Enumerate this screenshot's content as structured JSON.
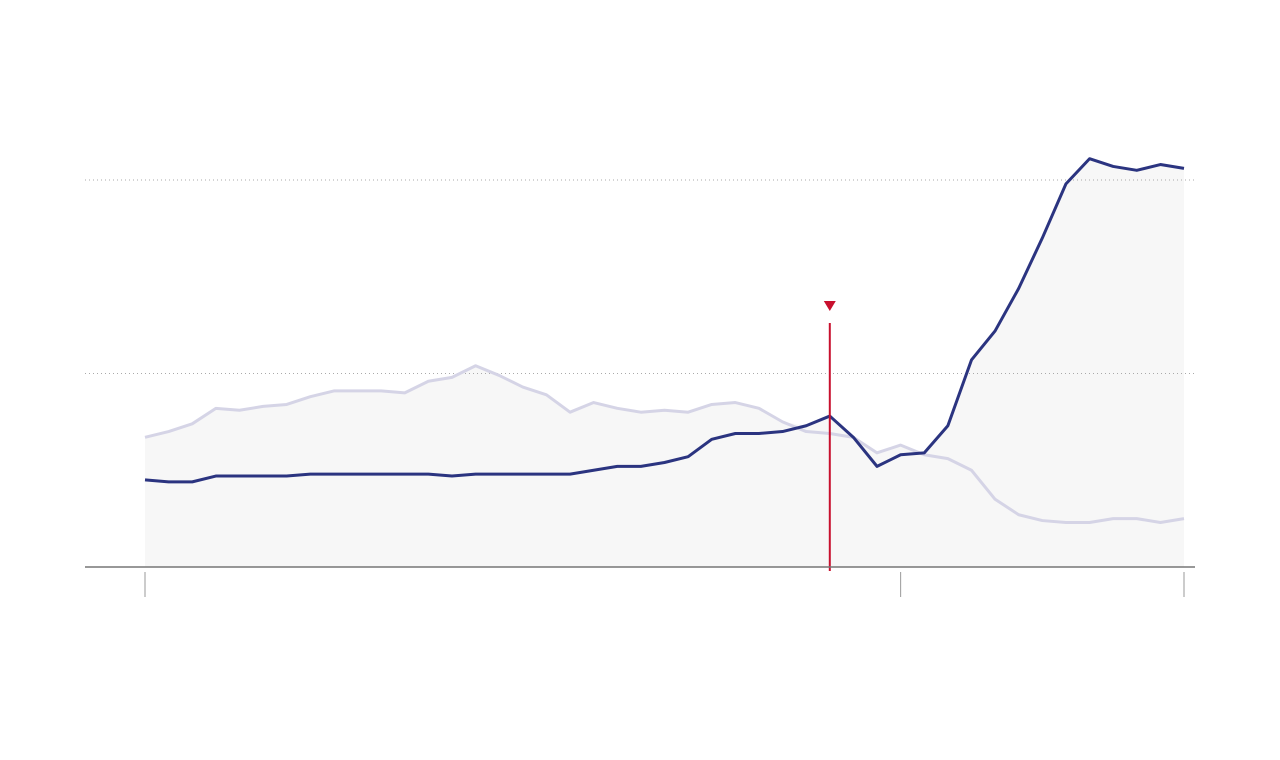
{
  "chart_data": {
    "type": "line",
    "x": [
      0,
      1,
      2,
      3,
      4,
      5,
      6,
      7,
      8,
      9,
      10,
      11,
      12,
      13,
      14,
      15,
      16,
      17,
      18,
      19,
      20,
      21,
      22,
      23,
      24,
      25,
      26,
      27,
      28,
      29,
      30,
      31,
      32,
      33,
      34,
      35,
      36,
      37,
      38,
      39,
      40,
      41,
      42,
      43,
      44
    ],
    "series": [
      {
        "color": "#d5d4e6",
        "values": [
          0.67,
          0.7,
          0.74,
          0.82,
          0.81,
          0.83,
          0.84,
          0.88,
          0.91,
          0.91,
          0.91,
          0.9,
          0.96,
          0.98,
          1.04,
          0.99,
          0.93,
          0.89,
          0.8,
          0.85,
          0.82,
          0.8,
          0.81,
          0.8,
          0.84,
          0.85,
          0.82,
          0.75,
          0.7,
          0.69,
          0.67,
          0.59,
          0.63,
          0.58,
          0.56,
          0.5,
          0.35,
          0.27,
          0.24,
          0.23,
          0.23,
          0.25,
          0.25,
          0.23,
          0.25
        ]
      },
      {
        "color": "#2b3480",
        "values": [
          0.45,
          0.44,
          0.44,
          0.47,
          0.47,
          0.47,
          0.47,
          0.48,
          0.48,
          0.48,
          0.48,
          0.48,
          0.48,
          0.47,
          0.48,
          0.48,
          0.48,
          0.48,
          0.48,
          0.5,
          0.52,
          0.52,
          0.54,
          0.57,
          0.66,
          0.69,
          0.69,
          0.7,
          0.73,
          0.78,
          0.67,
          0.52,
          0.58,
          0.59,
          0.73,
          1.07,
          1.22,
          1.44,
          1.7,
          1.98,
          2.11,
          2.07,
          2.05,
          2.08,
          2.06
        ]
      }
    ],
    "xlim": [
      0,
      44
    ],
    "xticks": [
      0,
      32,
      44
    ],
    "ylim": [
      0,
      2.2
    ],
    "yticks": [
      0,
      1,
      2
    ],
    "grid": true,
    "area_fill": "#f7f7f7",
    "marker": {
      "x": 29,
      "color": "#c8102e"
    }
  }
}
